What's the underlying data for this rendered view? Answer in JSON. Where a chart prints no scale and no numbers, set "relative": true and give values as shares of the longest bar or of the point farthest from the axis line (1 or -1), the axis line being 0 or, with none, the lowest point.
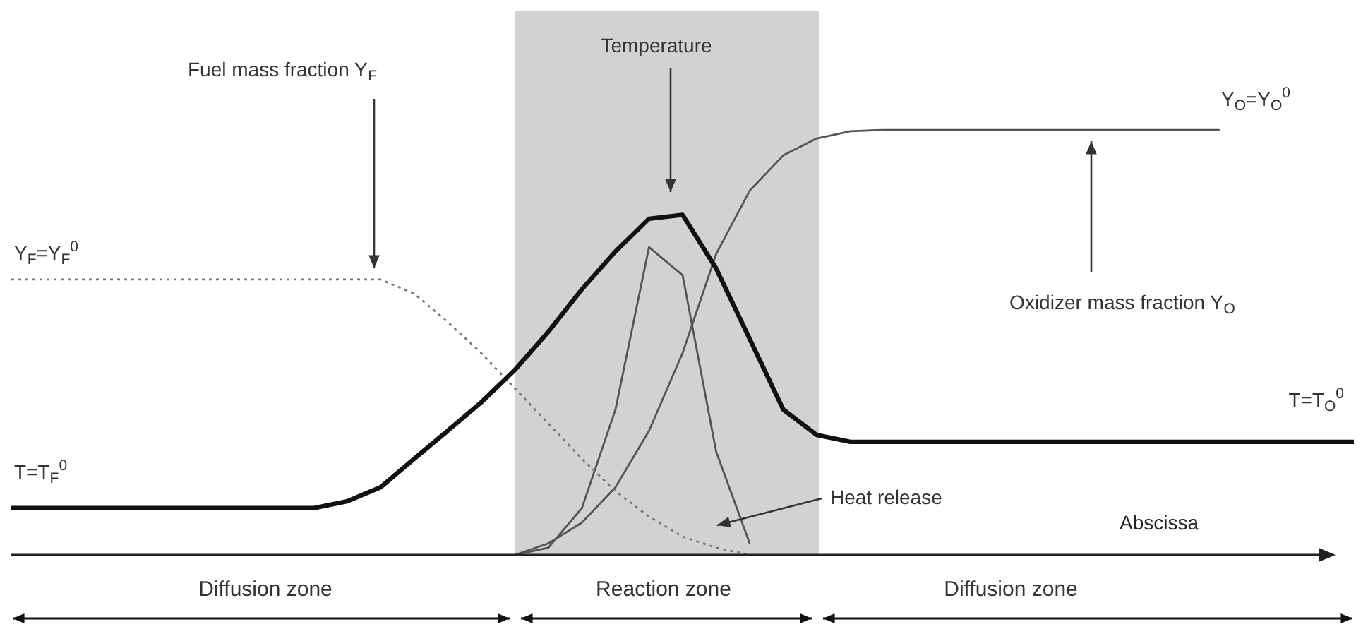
{
  "chart_data": {
    "type": "line",
    "relative": true,
    "xlabel": "Abscissa",
    "legend": false,
    "marker": "none",
    "categories": [
      null,
      null,
      null,
      null,
      null,
      null,
      null,
      null,
      null,
      null,
      null,
      null,
      null,
      null,
      null,
      null,
      null,
      null,
      null,
      null,
      null,
      null,
      null,
      null,
      null,
      null,
      null,
      null,
      null,
      null,
      null,
      null,
      null,
      null,
      null,
      null,
      null,
      null,
      null,
      null,
      null
    ],
    "series": [
      {
        "color": "#111111",
        "line_style": "solid",
        "values": [
          0.11,
          0.11,
          0.11,
          0.11,
          0.11,
          0.11,
          0.11,
          0.11,
          0.11,
          0.11,
          0.126,
          0.159,
          0.226,
          0.292,
          0.359,
          0.435,
          0.525,
          0.625,
          0.714,
          0.791,
          0.8,
          0.674,
          0.508,
          0.342,
          0.282,
          0.266,
          0.266,
          0.266,
          0.266,
          0.266,
          0.266,
          0.266,
          0.266,
          0.266,
          0.266,
          0.266,
          0.266,
          0.266,
          0.266,
          0.266,
          0.266
        ]
      },
      {
        "color": "#777777",
        "line_style": "dotted",
        "values": [
          0.648,
          0.648,
          0.648,
          0.648,
          0.648,
          0.648,
          0.648,
          0.648,
          0.648,
          0.648,
          0.648,
          0.648,
          0.615,
          0.548,
          0.475,
          0.392,
          0.309,
          0.226,
          0.15,
          0.09,
          0.043,
          0.017,
          0,
          null,
          null,
          null,
          null,
          null,
          null,
          null,
          null,
          null,
          null,
          null,
          null,
          null,
          null,
          null,
          null,
          null,
          null
        ]
      },
      {
        "color": "#555555",
        "line_style": "solid",
        "values": [
          null,
          null,
          null,
          null,
          null,
          null,
          null,
          null,
          null,
          null,
          null,
          null,
          null,
          null,
          null,
          0,
          0.027,
          0.076,
          0.159,
          0.292,
          0.475,
          0.708,
          0.857,
          0.94,
          0.98,
          0.997,
          1,
          1,
          1,
          1,
          1,
          1,
          1,
          1,
          1,
          1,
          1,
          null,
          null,
          null,
          null
        ]
      },
      {
        "color": "#555555",
        "line_style": "solid",
        "values": [
          null,
          null,
          null,
          null,
          null,
          null,
          null,
          null,
          null,
          null,
          null,
          null,
          null,
          null,
          null,
          0,
          0.017,
          0.11,
          0.342,
          0.724,
          0.658,
          0.243,
          0.027,
          null,
          null,
          null,
          null,
          null,
          null,
          null,
          null,
          null,
          null,
          null,
          null,
          null,
          null,
          null,
          null,
          null,
          null
        ]
      }
    ],
    "annotations": [
      "Fuel mass fraction Y$_{F}$",
      "Temperature",
      "Oxidizer mass fraction Y$_{O}$",
      "Heat release",
      "Y$_{F}$=Y$_{F}$$^{0}$",
      "T=T$_{F}$$^{0}$",
      "Y$_{O}$=Y$_{O}$$^{0}$",
      "T=T$_{O}$$^{0}$",
      "Diffusion zone",
      "Reaction zone",
      "Diffusion zone"
    ]
  }
}
